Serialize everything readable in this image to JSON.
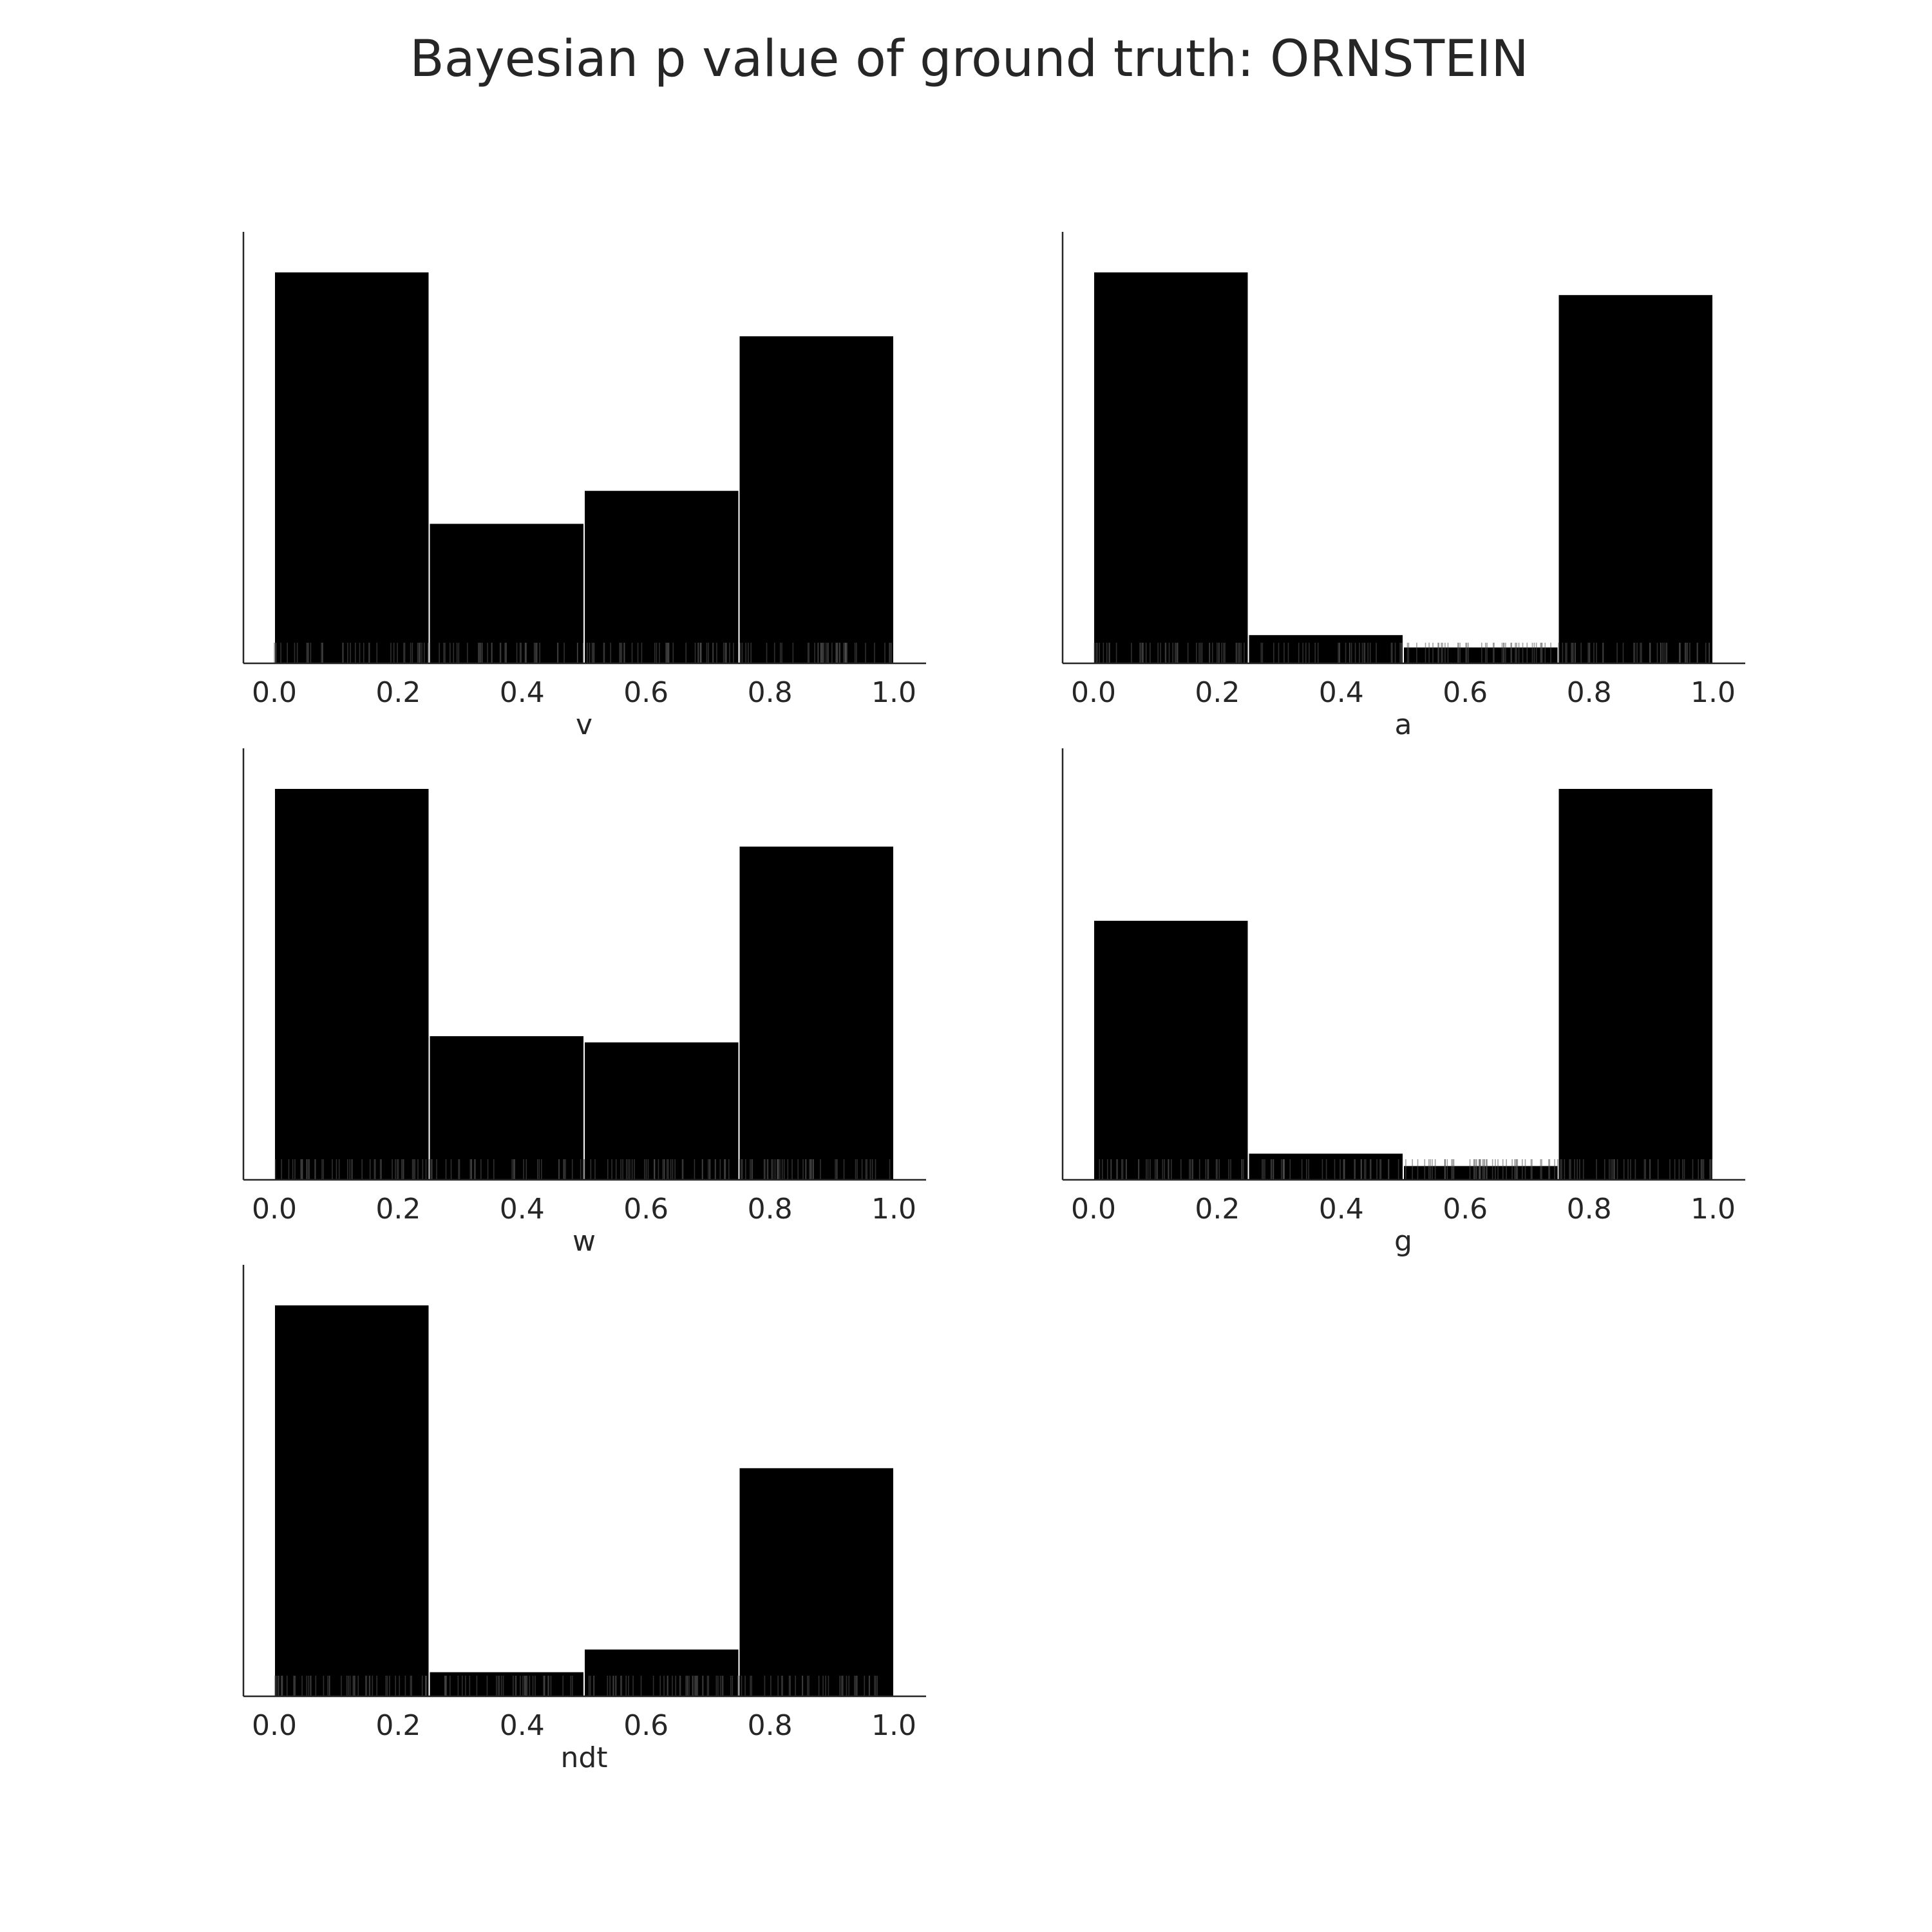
{
  "chart_data": {
    "title": "Bayesian p value of ground truth: ORNSTEIN",
    "type": "bar",
    "subplots": [
      {
        "xlabel": "v",
        "xlim": [
          0,
          1
        ],
        "xticks": [
          "0.0",
          "0.2",
          "0.4",
          "0.6",
          "0.8",
          "1.0"
        ],
        "bins": [
          0,
          0.25,
          0.5,
          0.75,
          1.0
        ],
        "heights": [
          0.95,
          0.34,
          0.42,
          0.795
        ],
        "ylim": [
          0,
          1
        ],
        "rug": true
      },
      {
        "xlabel": "a",
        "xlim": [
          0,
          1
        ],
        "xticks": [
          "0.0",
          "0.2",
          "0.4",
          "0.6",
          "0.8",
          "1.0"
        ],
        "bins": [
          0,
          0.25,
          0.5,
          0.75,
          1.0
        ],
        "heights": [
          0.95,
          0.07,
          0.04,
          0.895
        ],
        "ylim": [
          0,
          1
        ],
        "rug": true
      },
      {
        "xlabel": "w",
        "xlim": [
          0,
          1
        ],
        "xticks": [
          "0.0",
          "0.2",
          "0.4",
          "0.6",
          "0.8",
          "1.0"
        ],
        "bins": [
          0,
          0.25,
          0.5,
          0.75,
          1.0
        ],
        "heights": [
          0.95,
          0.35,
          0.335,
          0.81
        ],
        "ylim": [
          0,
          1
        ],
        "rug": true
      },
      {
        "xlabel": "g",
        "xlim": [
          0,
          1
        ],
        "xticks": [
          "0.0",
          "0.2",
          "0.4",
          "0.6",
          "0.8",
          "1.0"
        ],
        "bins": [
          0,
          0.25,
          0.5,
          0.75,
          1.0
        ],
        "heights": [
          0.63,
          0.065,
          0.035,
          0.95
        ],
        "ylim": [
          0,
          1
        ],
        "rug": true
      },
      {
        "xlabel": "ndt",
        "xlim": [
          0,
          1
        ],
        "xticks": [
          "0.0",
          "0.2",
          "0.4",
          "0.6",
          "0.8",
          "1.0"
        ],
        "bins": [
          0,
          0.25,
          0.5,
          0.75,
          1.0
        ],
        "heights": [
          0.95,
          0.06,
          0.115,
          0.555
        ],
        "ylim": [
          0,
          1
        ],
        "rug": true
      }
    ]
  }
}
